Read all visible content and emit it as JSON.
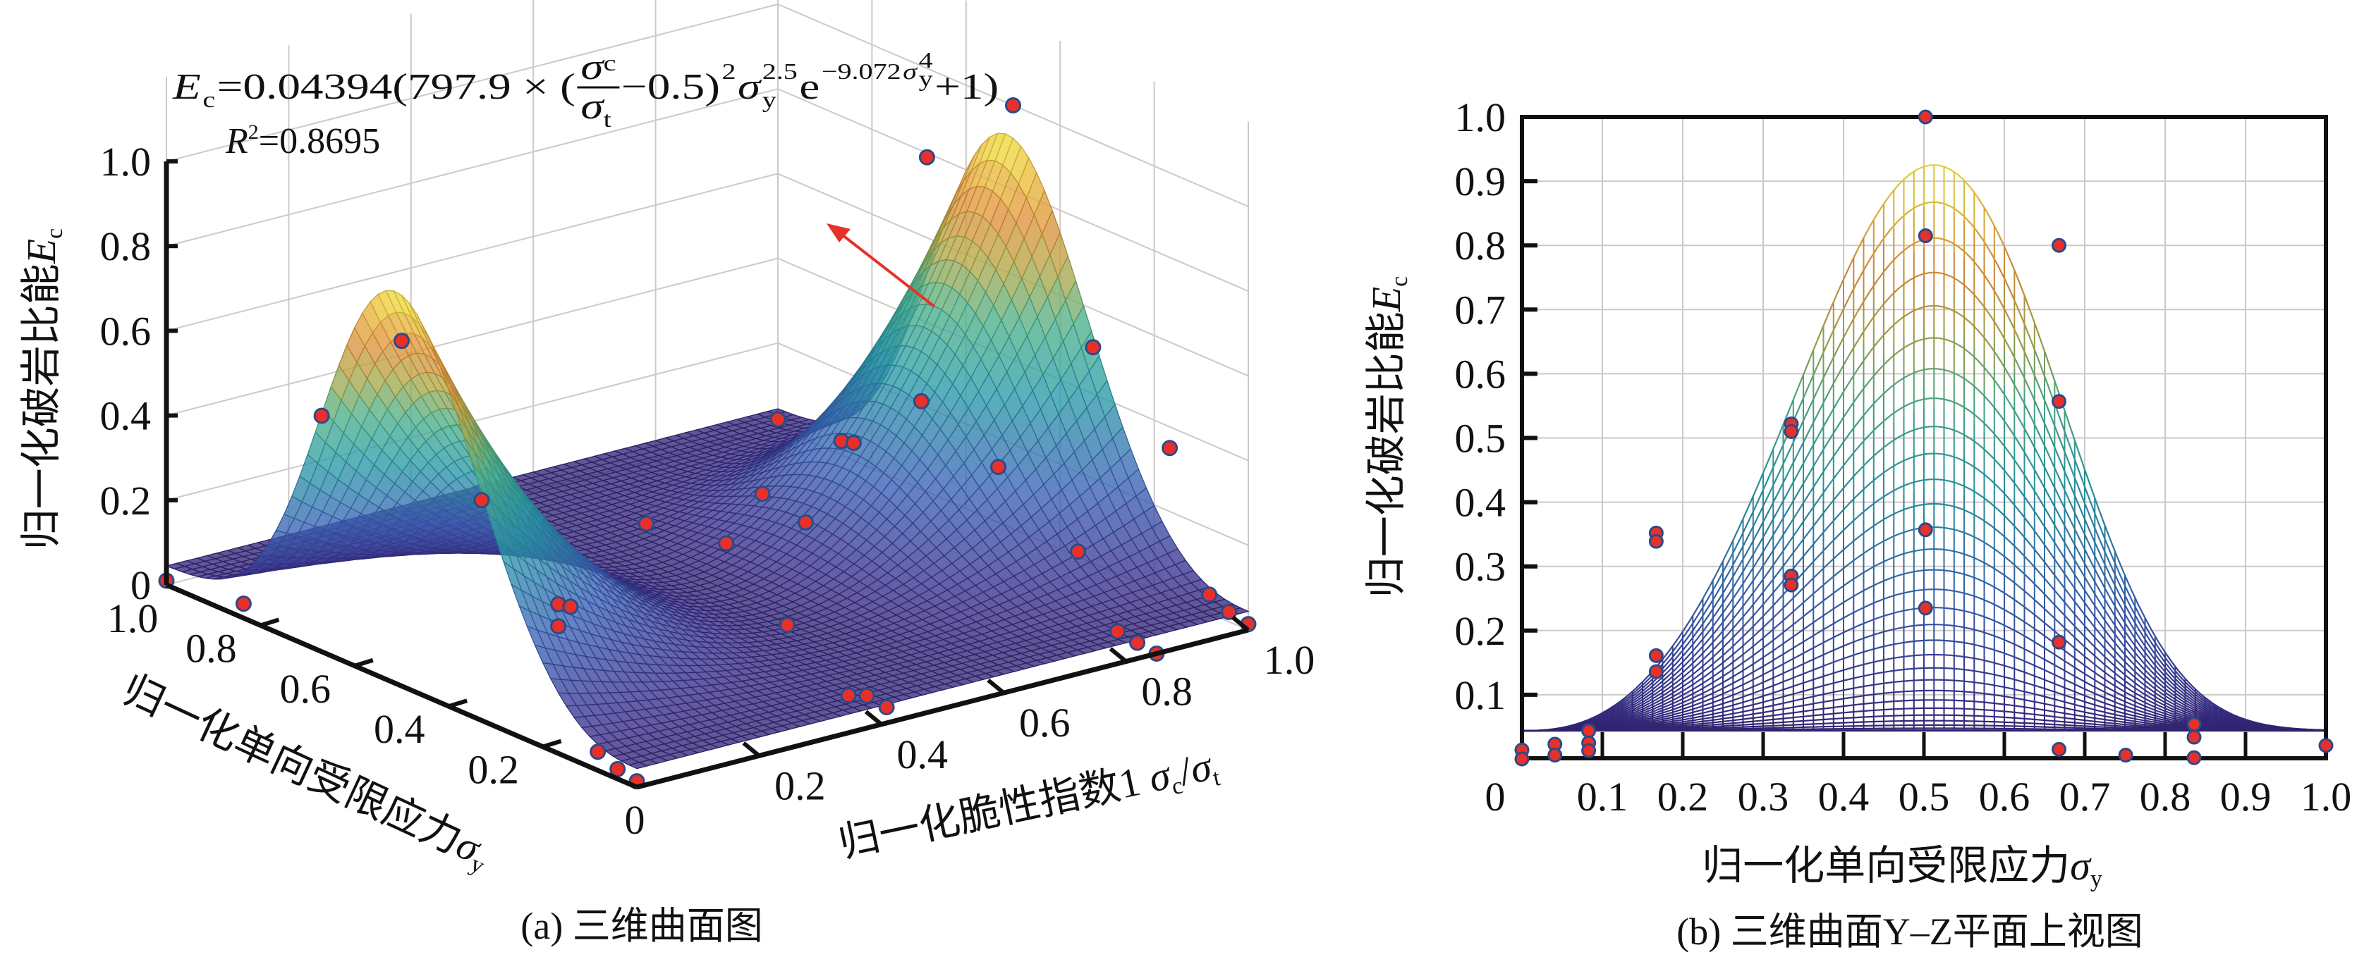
{
  "colors": {
    "point_fill": "#e8302a",
    "point_stroke": "#2b4a8a",
    "arrow": "#e8302a",
    "grid": "#cfc8c8",
    "colormap": [
      "#2d1a5e",
      "#3a2f8a",
      "#3a5fb5",
      "#2a9aa8",
      "#4cb08a",
      "#b2a845",
      "#e0903a",
      "#f2e83c"
    ]
  },
  "chart_data": [
    {
      "type": "surface",
      "caption": "(a) 三维曲面图",
      "formula": {
        "E": "E",
        "E_sub": "c",
        "lead": "=0.04394(797.9 × (",
        "num": "σ",
        "num_sub": "c",
        "den": "σ",
        "den_sub": "t",
        "mid": "−0.5)",
        "sq": "2",
        "sig": "σ",
        "sig_sub": "y",
        "pow": "2.5",
        "e": "e",
        "exp_coef": "−9.072",
        "exp_sig": "σ",
        "exp_sub": "y",
        "exp_pow": "4",
        "tail": "+1)",
        "coefficients": {
          "a": 0.04394,
          "b": 797.9,
          "center": 0.5,
          "power": 2.5,
          "decay": 9.072,
          "decay_power": 4,
          "offset": 1
        }
      },
      "r2": {
        "R": "R",
        "sup": "2",
        "value": "=0.8695"
      },
      "zlabel": {
        "text": "归一化破岩比能",
        "sym": "E",
        "sub": "c"
      },
      "ylabel": {
        "text": "归一化单向受限应力",
        "sym": "σ",
        "sub": "y"
      },
      "xlabel": {
        "text": "归一化脆性指数1 ",
        "sym1": "σ",
        "sub1": "c",
        "slash": "/",
        "sym2": "σ",
        "sub2": "t"
      },
      "xlim": [
        0,
        1
      ],
      "ylim": [
        0,
        1
      ],
      "zlim": [
        0,
        1
      ],
      "z_ticks": [
        "0",
        "0.2",
        "0.4",
        "0.6",
        "0.8",
        "1.0"
      ],
      "y_ticks": [
        "0",
        "0.2",
        "0.4",
        "0.6",
        "0.8",
        "1.0"
      ],
      "x_ticks": [
        "0.2",
        "0.4",
        "0.6",
        "0.8",
        "1.0"
      ],
      "grid": true,
      "points": [
        [
          1.0,
          0.5,
          1.0
        ],
        [
          0.99,
          0.67,
          0.8
        ],
        [
          0.0,
          0.5,
          0.815
        ],
        [
          0.0,
          0.67,
          0.557
        ],
        [
          0.0,
          0.33,
          0.52
        ],
        [
          1.0,
          0.33,
          0.51
        ],
        [
          0.85,
          0.5,
          0.357
        ],
        [
          1.0,
          0.167,
          0.35
        ],
        [
          0.845,
          0.33,
          0.285
        ],
        [
          0.85,
          0.167,
          0.161
        ],
        [
          0.85,
          0.67,
          0.182
        ],
        [
          0.87,
          0.67,
          0.17
        ],
        [
          0.59,
          0.5,
          0.235
        ],
        [
          0.53,
          0.33,
          0.271
        ],
        [
          0.4,
          0.5,
          0.235
        ],
        [
          0.4,
          0.33,
          0.27
        ],
        [
          1.0,
          1.0,
          0.02
        ],
        [
          0.0,
          0.167,
          0.352
        ],
        [
          0.02,
          0.167,
          0.339
        ],
        [
          0.0,
          0.167,
          0.3
        ],
        [
          0.0,
          0.836,
          0.034
        ],
        [
          0.0,
          1.0,
          0.01
        ],
        [
          0.5,
          0.33,
          0.04
        ],
        [
          0.41,
          0.083,
          0.025
        ],
        [
          0.44,
          0.083,
          0.013
        ],
        [
          0.44,
          0.041,
          0.006
        ],
        [
          0.0,
          0.083,
          0.044
        ],
        [
          0.0,
          0.041,
          0.023
        ],
        [
          0.0,
          0.0,
          0.014
        ],
        [
          0.85,
          0.083,
          0.013
        ],
        [
          0.85,
          0.041,
          0.006
        ],
        [
          0.85,
          0.0,
          0.0
        ],
        [
          1.0,
          0.083,
          0.044
        ],
        [
          1.0,
          0.041,
          0.023
        ],
        [
          1.0,
          0.0,
          0.014
        ]
      ]
    },
    {
      "type": "line",
      "caption": "(b) 三维曲面Y–Z平面上视图",
      "xlabel": {
        "text": "归一化单向受限应力",
        "sym": "σ",
        "sub": "y"
      },
      "ylabel": {
        "text": "归一化破岩比能",
        "sym": "E",
        "sub": "c"
      },
      "xlim": [
        0,
        1
      ],
      "ylim": [
        0,
        1
      ],
      "x_ticks": [
        "0",
        "0.1",
        "0.2",
        "0.3",
        "0.4",
        "0.5",
        "0.6",
        "0.7",
        "0.8",
        "0.9",
        "1.0"
      ],
      "y_ticks": [
        "0.1",
        "0.2",
        "0.3",
        "0.4",
        "0.5",
        "0.6",
        "0.7",
        "0.8",
        "0.9",
        "1.0"
      ],
      "grid": true,
      "curve_peak": {
        "x": 0.51,
        "y": 0.924
      },
      "baseline": 0.044,
      "points": [
        [
          0.502,
          1.0
        ],
        [
          0.502,
          0.815
        ],
        [
          0.668,
          0.8
        ],
        [
          0.668,
          0.557
        ],
        [
          0.668,
          0.182
        ],
        [
          0.668,
          0.015
        ],
        [
          0.335,
          0.522
        ],
        [
          0.335,
          0.51
        ],
        [
          0.335,
          0.285
        ],
        [
          0.335,
          0.271
        ],
        [
          0.502,
          0.357
        ],
        [
          0.502,
          0.235
        ],
        [
          0.167,
          0.352
        ],
        [
          0.167,
          0.339
        ],
        [
          0.167,
          0.161
        ],
        [
          0.167,
          0.136
        ],
        [
          0.0,
          0.014
        ],
        [
          0.0,
          0.0
        ],
        [
          0.041,
          0.023
        ],
        [
          0.041,
          0.006
        ],
        [
          0.083,
          0.044
        ],
        [
          0.083,
          0.025
        ],
        [
          0.083,
          0.013
        ],
        [
          0.751,
          0.006
        ],
        [
          0.836,
          0.054
        ],
        [
          0.836,
          0.034
        ],
        [
          0.836,
          0.002
        ],
        [
          1.0,
          0.021
        ]
      ]
    }
  ]
}
